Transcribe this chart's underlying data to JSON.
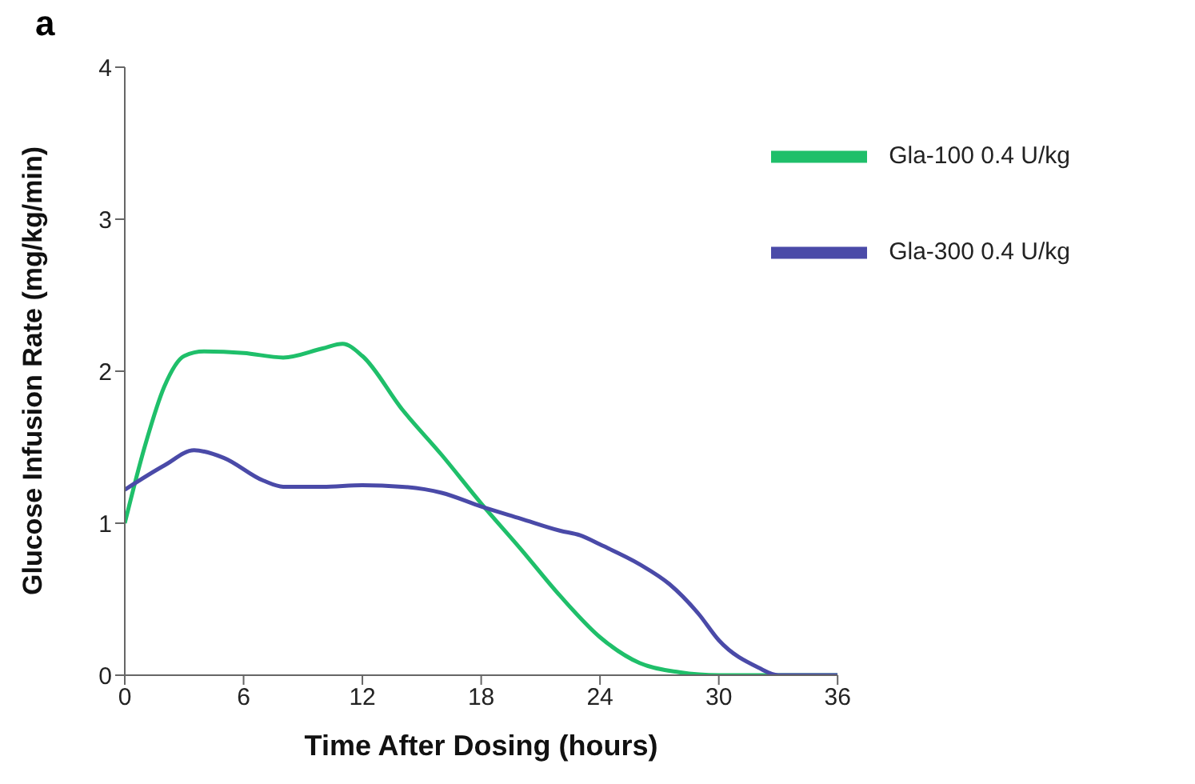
{
  "chart_data": {
    "type": "line",
    "xlabel": "Time After Dosing (hours)",
    "ylabel": "Glucose Infusion Rate (mg/kg/min)",
    "annotations": [
      "a"
    ],
    "xlim": [
      0,
      36
    ],
    "xticks": [
      0,
      6,
      12,
      18,
      24,
      30,
      36
    ],
    "ylim": [
      0,
      4
    ],
    "yticks": [
      0,
      1,
      2,
      3,
      4
    ],
    "grid": false,
    "legend": "top right",
    "marker": "none",
    "line_style": "solid",
    "series": [
      {
        "name": "Gla‑100 0.4 U/kg",
        "color": "#1fbf6a",
        "x": [
          0,
          1,
          2,
          3,
          4,
          6,
          8,
          10,
          11,
          12,
          14,
          16,
          18,
          20,
          22,
          24,
          26,
          28,
          30,
          36
        ],
        "values": [
          1.0,
          1.5,
          1.9,
          2.1,
          2.13,
          2.12,
          2.09,
          2.15,
          2.18,
          2.1,
          1.75,
          1.45,
          1.13,
          0.83,
          0.52,
          0.25,
          0.08,
          0.02,
          0,
          0
        ]
      },
      {
        "name": "Gla‑300 0.4 U/kg",
        "color": "#4a4aa8",
        "x": [
          0,
          2,
          3.5,
          5,
          7,
          8,
          10,
          12,
          14,
          16,
          18,
          20,
          22,
          23,
          24,
          26,
          27.5,
          29,
          30,
          32,
          33,
          36
        ],
        "values": [
          1.22,
          1.38,
          1.48,
          1.43,
          1.28,
          1.24,
          1.24,
          1.25,
          1.24,
          1.2,
          1.11,
          1.03,
          0.95,
          0.92,
          0.86,
          0.73,
          0.6,
          0.4,
          0.23,
          0.05,
          0,
          0
        ]
      }
    ]
  }
}
